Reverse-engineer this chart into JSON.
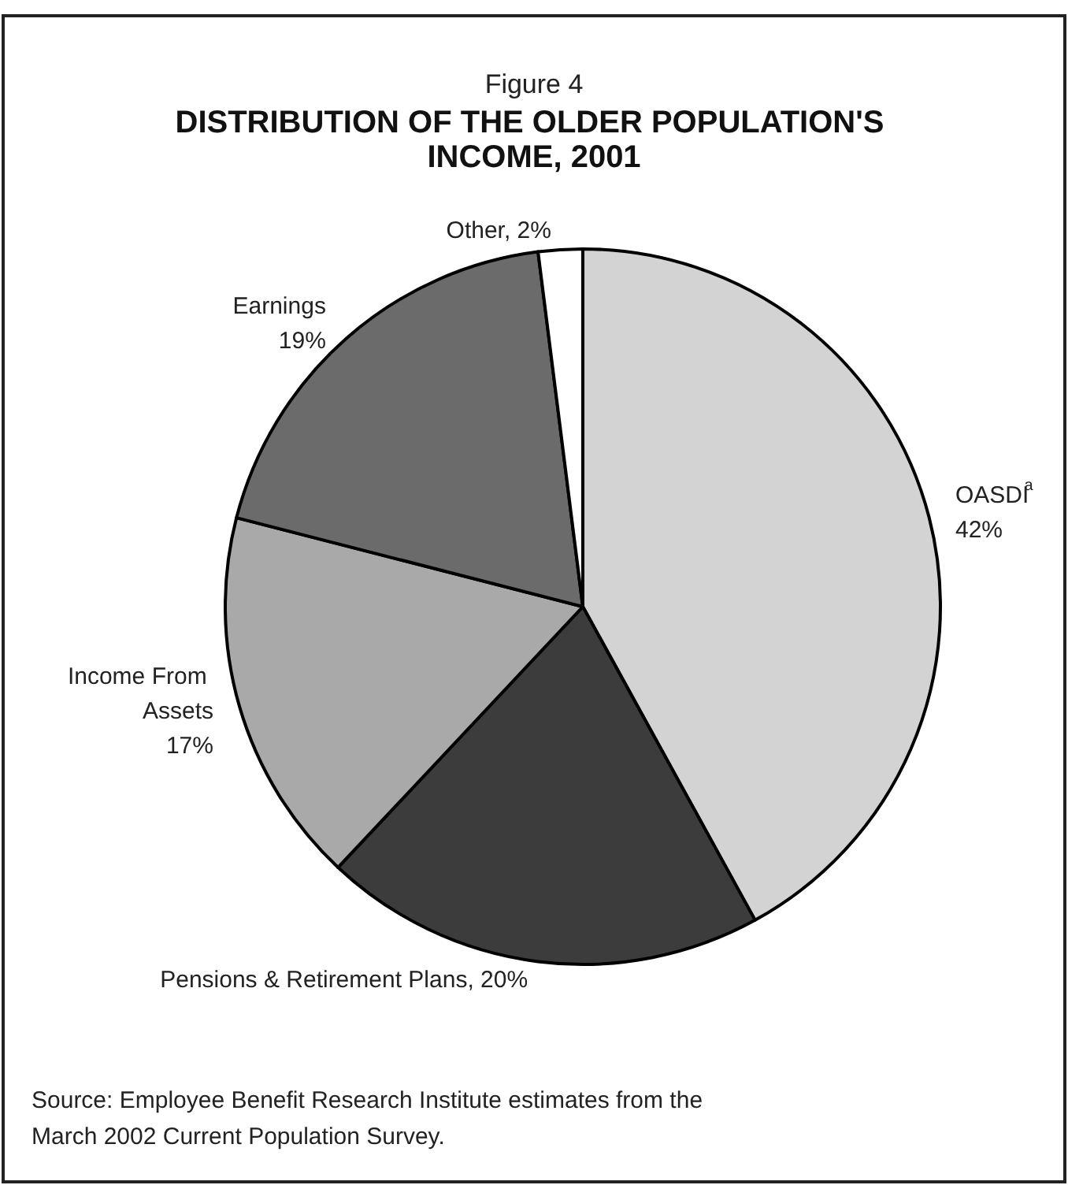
{
  "chart_data": {
    "type": "pie",
    "subtitle": "Figure 4",
    "title": "DISTRIBUTION OF THE OLDER POPULATION'S INCOME, 2001",
    "categories": [
      "OASDI$^{a}$",
      "Pensions & Retirement Plans",
      "Income From Assets",
      "Earnings",
      "Other"
    ],
    "values": [
      42,
      20,
      17,
      19,
      2
    ],
    "value_labels": [
      "42%",
      "20%",
      "17%",
      "19%",
      "2%"
    ],
    "colors": [
      "#d3d3d3",
      "#3c3c3c",
      "#a9a9a9",
      "#6b6b6b",
      "#ffffff"
    ],
    "legend": false,
    "annotations": [
      "Source: Employee Benefit Research Institute estimates from the March 2002 Current Population Survey."
    ]
  }
}
